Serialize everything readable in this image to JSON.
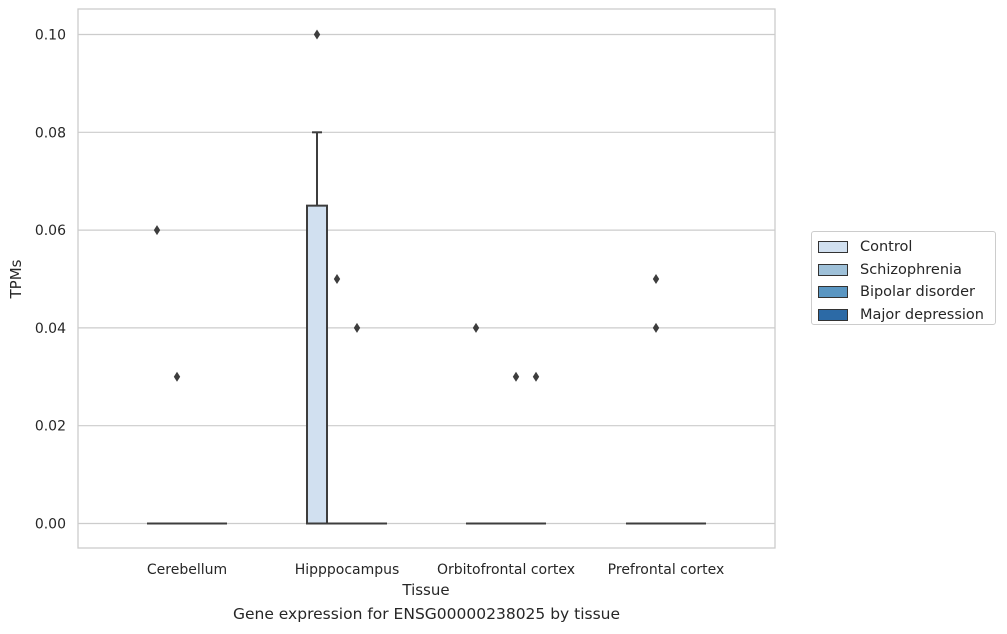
{
  "chart_data": {
    "type": "box",
    "xlabel": "Tissue",
    "ylabel": "TPMs",
    "caption": "Gene expression for ENSG00000238025 by tissue",
    "categories": [
      "Cerebellum",
      "Hipppocampus",
      "Orbitofrontal cortex",
      "Prefrontal cortex"
    ],
    "ylim": [
      -0.005,
      0.105
    ],
    "yticks": [
      "0.00",
      "0.02",
      "0.04",
      "0.06",
      "0.08",
      "0.10"
    ],
    "grid": "horizontal",
    "legend_placement": "right",
    "series": [
      {
        "name": "Control",
        "color": "#d1e0f0",
        "boxes": [
          {
            "q1": 0,
            "median": 0,
            "q3": 0,
            "whisker_low": 0,
            "whisker_high": 0,
            "outliers": [
              0.06
            ]
          },
          {
            "q1": 0,
            "median": 0,
            "q3": 0.065,
            "whisker_low": 0,
            "whisker_high": 0.08,
            "outliers": [
              0.1
            ]
          },
          {
            "q1": 0,
            "median": 0,
            "q3": 0,
            "whisker_low": 0,
            "whisker_high": 0,
            "outliers": [
              0.04
            ]
          },
          {
            "q1": 0,
            "median": 0,
            "q3": 0,
            "whisker_low": 0,
            "whisker_high": 0,
            "outliers": []
          }
        ]
      },
      {
        "name": "Schizophrenia",
        "color": "#9fc1d9",
        "boxes": [
          {
            "q1": 0,
            "median": 0,
            "q3": 0,
            "whisker_low": 0,
            "whisker_high": 0,
            "outliers": [
              0.03
            ]
          },
          {
            "q1": 0,
            "median": 0,
            "q3": 0,
            "whisker_low": 0,
            "whisker_high": 0,
            "outliers": [
              0.05
            ]
          },
          {
            "q1": 0,
            "median": 0,
            "q3": 0,
            "whisker_low": 0,
            "whisker_high": 0,
            "outliers": []
          },
          {
            "q1": 0,
            "median": 0,
            "q3": 0,
            "whisker_low": 0,
            "whisker_high": 0,
            "outliers": [
              0.05,
              0.04
            ]
          }
        ]
      },
      {
        "name": "Bipolar disorder",
        "color": "#5a96c2",
        "boxes": [
          {
            "q1": 0,
            "median": 0,
            "q3": 0,
            "whisker_low": 0,
            "whisker_high": 0,
            "outliers": []
          },
          {
            "q1": 0,
            "median": 0,
            "q3": 0,
            "whisker_low": 0,
            "whisker_high": 0,
            "outliers": [
              0.04
            ]
          },
          {
            "q1": 0,
            "median": 0,
            "q3": 0,
            "whisker_low": 0,
            "whisker_high": 0,
            "outliers": [
              0.03
            ]
          },
          {
            "q1": 0,
            "median": 0,
            "q3": 0,
            "whisker_low": 0,
            "whisker_high": 0,
            "outliers": []
          }
        ]
      },
      {
        "name": "Major depression",
        "color": "#2c6aa6",
        "boxes": [
          {
            "q1": 0,
            "median": 0,
            "q3": 0,
            "whisker_low": 0,
            "whisker_high": 0,
            "outliers": []
          },
          {
            "q1": 0,
            "median": 0,
            "q3": 0,
            "whisker_low": 0,
            "whisker_high": 0,
            "outliers": []
          },
          {
            "q1": 0,
            "median": 0,
            "q3": 0,
            "whisker_low": 0,
            "whisker_high": 0,
            "outliers": [
              0.03
            ]
          },
          {
            "q1": 0,
            "median": 0,
            "q3": 0,
            "whisker_low": 0,
            "whisker_high": 0,
            "outliers": []
          }
        ]
      }
    ]
  }
}
